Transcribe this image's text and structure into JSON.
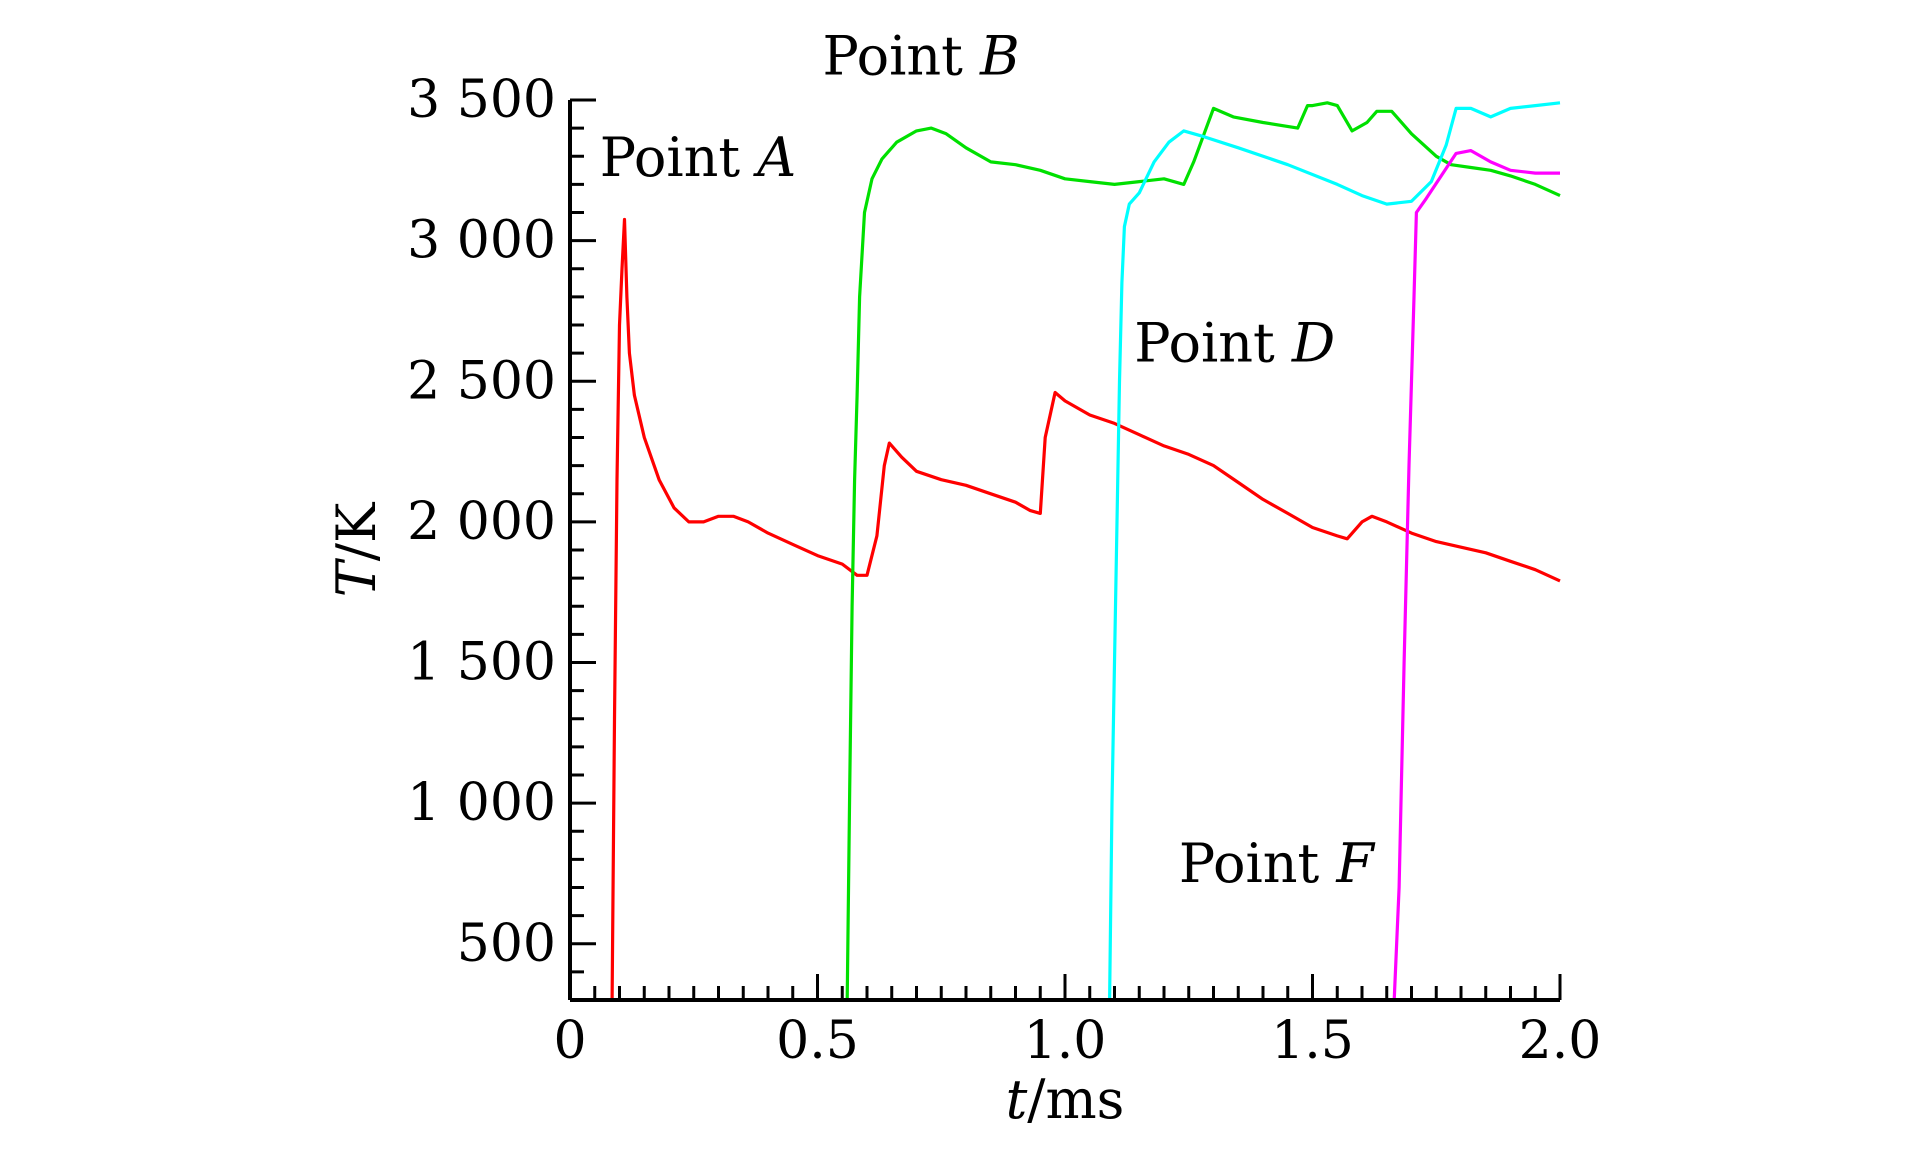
{
  "chart_data": {
    "type": "line",
    "xlabel": {
      "var": "t",
      "unit": "/ms"
    },
    "ylabel": {
      "var": "T",
      "unit": "/K"
    },
    "xlim": [
      0,
      2.0
    ],
    "ylim": [
      300,
      3500
    ],
    "x_ticks": [
      0,
      0.5,
      1.0,
      1.5,
      2.0
    ],
    "x_tick_labels": [
      "0",
      "0.5",
      "1.0",
      "1.5",
      "2.0"
    ],
    "y_ticks": [
      500,
      1000,
      1500,
      2000,
      2500,
      3000,
      3500
    ],
    "y_tick_labels": [
      "500",
      "1 000",
      "1 500",
      "2 000",
      "2 500",
      "3 000",
      "3 500"
    ],
    "grid": false,
    "legend": "none",
    "series": [
      {
        "label": {
          "prefix": "Point ",
          "letter": "A"
        },
        "color": "#ff0000",
        "label_pos": {
          "x": 0.06,
          "y": 3230
        },
        "points": [
          [
            0.085,
            300
          ],
          [
            0.09,
            1300
          ],
          [
            0.095,
            2150
          ],
          [
            0.1,
            2700
          ],
          [
            0.105,
            2900
          ],
          [
            0.11,
            3075
          ],
          [
            0.115,
            2800
          ],
          [
            0.12,
            2600
          ],
          [
            0.13,
            2450
          ],
          [
            0.15,
            2300
          ],
          [
            0.18,
            2150
          ],
          [
            0.21,
            2050
          ],
          [
            0.24,
            2000
          ],
          [
            0.27,
            2000
          ],
          [
            0.3,
            2020
          ],
          [
            0.33,
            2020
          ],
          [
            0.36,
            2000
          ],
          [
            0.4,
            1960
          ],
          [
            0.45,
            1920
          ],
          [
            0.5,
            1880
          ],
          [
            0.55,
            1850
          ],
          [
            0.58,
            1810
          ],
          [
            0.6,
            1810
          ],
          [
            0.62,
            1950
          ],
          [
            0.635,
            2200
          ],
          [
            0.645,
            2280
          ],
          [
            0.67,
            2230
          ],
          [
            0.7,
            2180
          ],
          [
            0.75,
            2150
          ],
          [
            0.8,
            2130
          ],
          [
            0.85,
            2100
          ],
          [
            0.9,
            2070
          ],
          [
            0.93,
            2040
          ],
          [
            0.95,
            2030
          ],
          [
            0.96,
            2300
          ],
          [
            0.98,
            2460
          ],
          [
            1.0,
            2430
          ],
          [
            1.05,
            2380
          ],
          [
            1.1,
            2350
          ],
          [
            1.15,
            2310
          ],
          [
            1.2,
            2270
          ],
          [
            1.25,
            2240
          ],
          [
            1.3,
            2200
          ],
          [
            1.35,
            2140
          ],
          [
            1.4,
            2080
          ],
          [
            1.45,
            2030
          ],
          [
            1.5,
            1980
          ],
          [
            1.55,
            1950
          ],
          [
            1.57,
            1940
          ],
          [
            1.6,
            2000
          ],
          [
            1.62,
            2020
          ],
          [
            1.65,
            2000
          ],
          [
            1.7,
            1960
          ],
          [
            1.75,
            1930
          ],
          [
            1.8,
            1910
          ],
          [
            1.85,
            1890
          ],
          [
            1.9,
            1860
          ],
          [
            1.95,
            1830
          ],
          [
            2.0,
            1790
          ]
        ]
      },
      {
        "label": {
          "prefix": "Point ",
          "letter": "B"
        },
        "color": "#00e000",
        "label_pos": {
          "x": 0.51,
          "y": 3590
        },
        "points": [
          [
            0.56,
            300
          ],
          [
            0.565,
            1050
          ],
          [
            0.57,
            1700
          ],
          [
            0.575,
            2150
          ],
          [
            0.58,
            2450
          ],
          [
            0.585,
            2800
          ],
          [
            0.595,
            3100
          ],
          [
            0.61,
            3220
          ],
          [
            0.63,
            3290
          ],
          [
            0.66,
            3350
          ],
          [
            0.7,
            3390
          ],
          [
            0.73,
            3400
          ],
          [
            0.76,
            3380
          ],
          [
            0.8,
            3330
          ],
          [
            0.85,
            3280
          ],
          [
            0.9,
            3270
          ],
          [
            0.95,
            3250
          ],
          [
            1.0,
            3220
          ],
          [
            1.05,
            3210
          ],
          [
            1.1,
            3200
          ],
          [
            1.15,
            3210
          ],
          [
            1.2,
            3220
          ],
          [
            1.24,
            3200
          ],
          [
            1.26,
            3280
          ],
          [
            1.3,
            3470
          ],
          [
            1.34,
            3440
          ],
          [
            1.4,
            3420
          ],
          [
            1.47,
            3400
          ],
          [
            1.49,
            3480
          ],
          [
            1.5,
            3480
          ],
          [
            1.53,
            3490
          ],
          [
            1.55,
            3480
          ],
          [
            1.58,
            3390
          ],
          [
            1.61,
            3420
          ],
          [
            1.63,
            3460
          ],
          [
            1.66,
            3460
          ],
          [
            1.7,
            3380
          ],
          [
            1.75,
            3300
          ],
          [
            1.78,
            3270
          ],
          [
            1.82,
            3260
          ],
          [
            1.86,
            3250
          ],
          [
            1.9,
            3230
          ],
          [
            1.95,
            3200
          ],
          [
            2.0,
            3160
          ]
        ]
      },
      {
        "label": {
          "prefix": "Point ",
          "letter": "D"
        },
        "color": "#00ffff",
        "label_pos": {
          "x": 1.14,
          "y": 2570
        },
        "points": [
          [
            1.09,
            300
          ],
          [
            1.095,
            1000
          ],
          [
            1.1,
            1500
          ],
          [
            1.105,
            2000
          ],
          [
            1.11,
            2500
          ],
          [
            1.115,
            2850
          ],
          [
            1.12,
            3050
          ],
          [
            1.13,
            3130
          ],
          [
            1.15,
            3170
          ],
          [
            1.18,
            3280
          ],
          [
            1.21,
            3350
          ],
          [
            1.24,
            3390
          ],
          [
            1.28,
            3370
          ],
          [
            1.35,
            3330
          ],
          [
            1.45,
            3270
          ],
          [
            1.55,
            3200
          ],
          [
            1.6,
            3160
          ],
          [
            1.65,
            3130
          ],
          [
            1.7,
            3140
          ],
          [
            1.74,
            3210
          ],
          [
            1.77,
            3340
          ],
          [
            1.79,
            3470
          ],
          [
            1.82,
            3470
          ],
          [
            1.86,
            3440
          ],
          [
            1.9,
            3470
          ],
          [
            1.95,
            3480
          ],
          [
            2.0,
            3490
          ]
        ]
      },
      {
        "label": {
          "prefix": "Point ",
          "letter": "F"
        },
        "color": "#ff00ff",
        "label_pos": {
          "x": 1.23,
          "y": 720
        },
        "points": [
          [
            1.665,
            300
          ],
          [
            1.675,
            700
          ],
          [
            1.685,
            1500
          ],
          [
            1.695,
            2200
          ],
          [
            1.705,
            2800
          ],
          [
            1.71,
            3100
          ],
          [
            1.73,
            3150
          ],
          [
            1.76,
            3230
          ],
          [
            1.79,
            3310
          ],
          [
            1.82,
            3320
          ],
          [
            1.86,
            3280
          ],
          [
            1.9,
            3250
          ],
          [
            1.95,
            3240
          ],
          [
            2.0,
            3240
          ]
        ]
      }
    ]
  }
}
